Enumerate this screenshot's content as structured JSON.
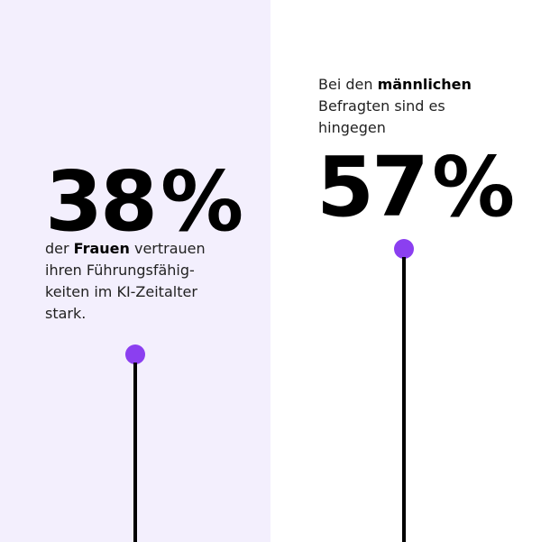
{
  "women": {
    "value": "38",
    "unit": "%",
    "caption_prefix": "der ",
    "caption_bold": "Frauen",
    "caption_line1_rest": " vertrauen",
    "caption_line2": "ihren Führungsfähig-",
    "caption_line3": "keiten im KI-Zeitalter",
    "caption_line4": "stark."
  },
  "men": {
    "caption_prefix": "Bei den ",
    "caption_bold": "männlichen",
    "caption_line2": "Befragten sind es",
    "caption_line3": "hingegen",
    "value": "57",
    "unit": "%"
  },
  "colors": {
    "left_background": "#f3effd",
    "accent_dot": "#8b3ff0",
    "stem": "#000000"
  }
}
